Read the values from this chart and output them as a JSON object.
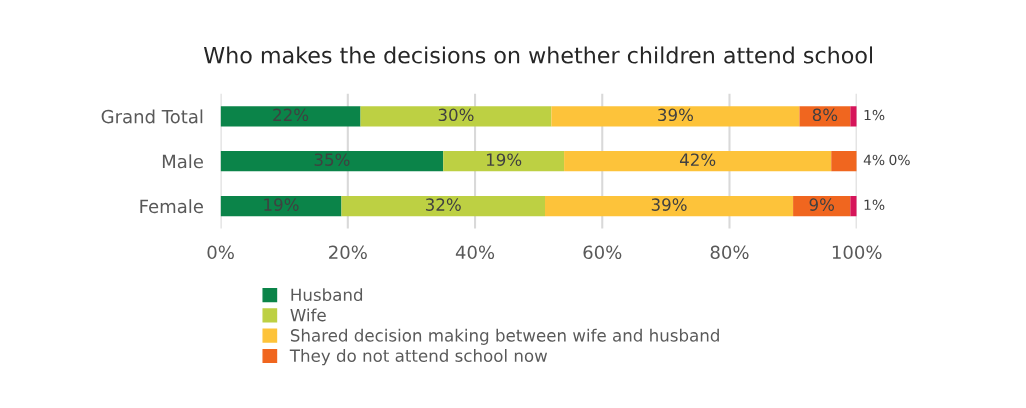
{
  "chart_data": {
    "type": "bar",
    "title": "Who makes the decisions on whether children attend school",
    "orientation": "horizontal",
    "stacked": true,
    "categories": [
      "Grand Total",
      "Male",
      "Female"
    ],
    "series": [
      {
        "name": "Husband",
        "color": "#0b8449",
        "values": [
          22,
          35,
          19
        ],
        "value_labels": [
          "22%",
          "35%",
          "19%"
        ]
      },
      {
        "name": "Wife",
        "color": "#bdd043",
        "values": [
          30,
          19,
          32
        ],
        "value_labels": [
          "30%",
          "19%",
          "32%"
        ]
      },
      {
        "name": "Shared decision making between wife and husband",
        "color": "#fdc33a",
        "values": [
          39,
          42,
          39
        ],
        "value_labels": [
          "39%",
          "42%",
          "39%"
        ]
      },
      {
        "name": "They do not attend school now",
        "color": "#f0661f",
        "values": [
          8,
          4,
          9
        ],
        "value_labels": [
          "8%",
          "4%",
          "9%"
        ]
      },
      {
        "color": "#d6155a",
        "values": [
          1,
          0,
          1
        ],
        "value_labels": [
          "1%",
          "0%",
          "1%"
        ]
      }
    ],
    "xlim": [
      0,
      100
    ],
    "xticks": [
      {
        "value": 0,
        "label": "0%"
      },
      {
        "value": 20,
        "label": "20%"
      },
      {
        "value": 40,
        "label": "40%"
      },
      {
        "value": 60,
        "label": "60%"
      },
      {
        "value": 80,
        "label": "80%"
      },
      {
        "value": 100,
        "label": "100%"
      }
    ],
    "grid": "x",
    "legend": "bottom"
  }
}
